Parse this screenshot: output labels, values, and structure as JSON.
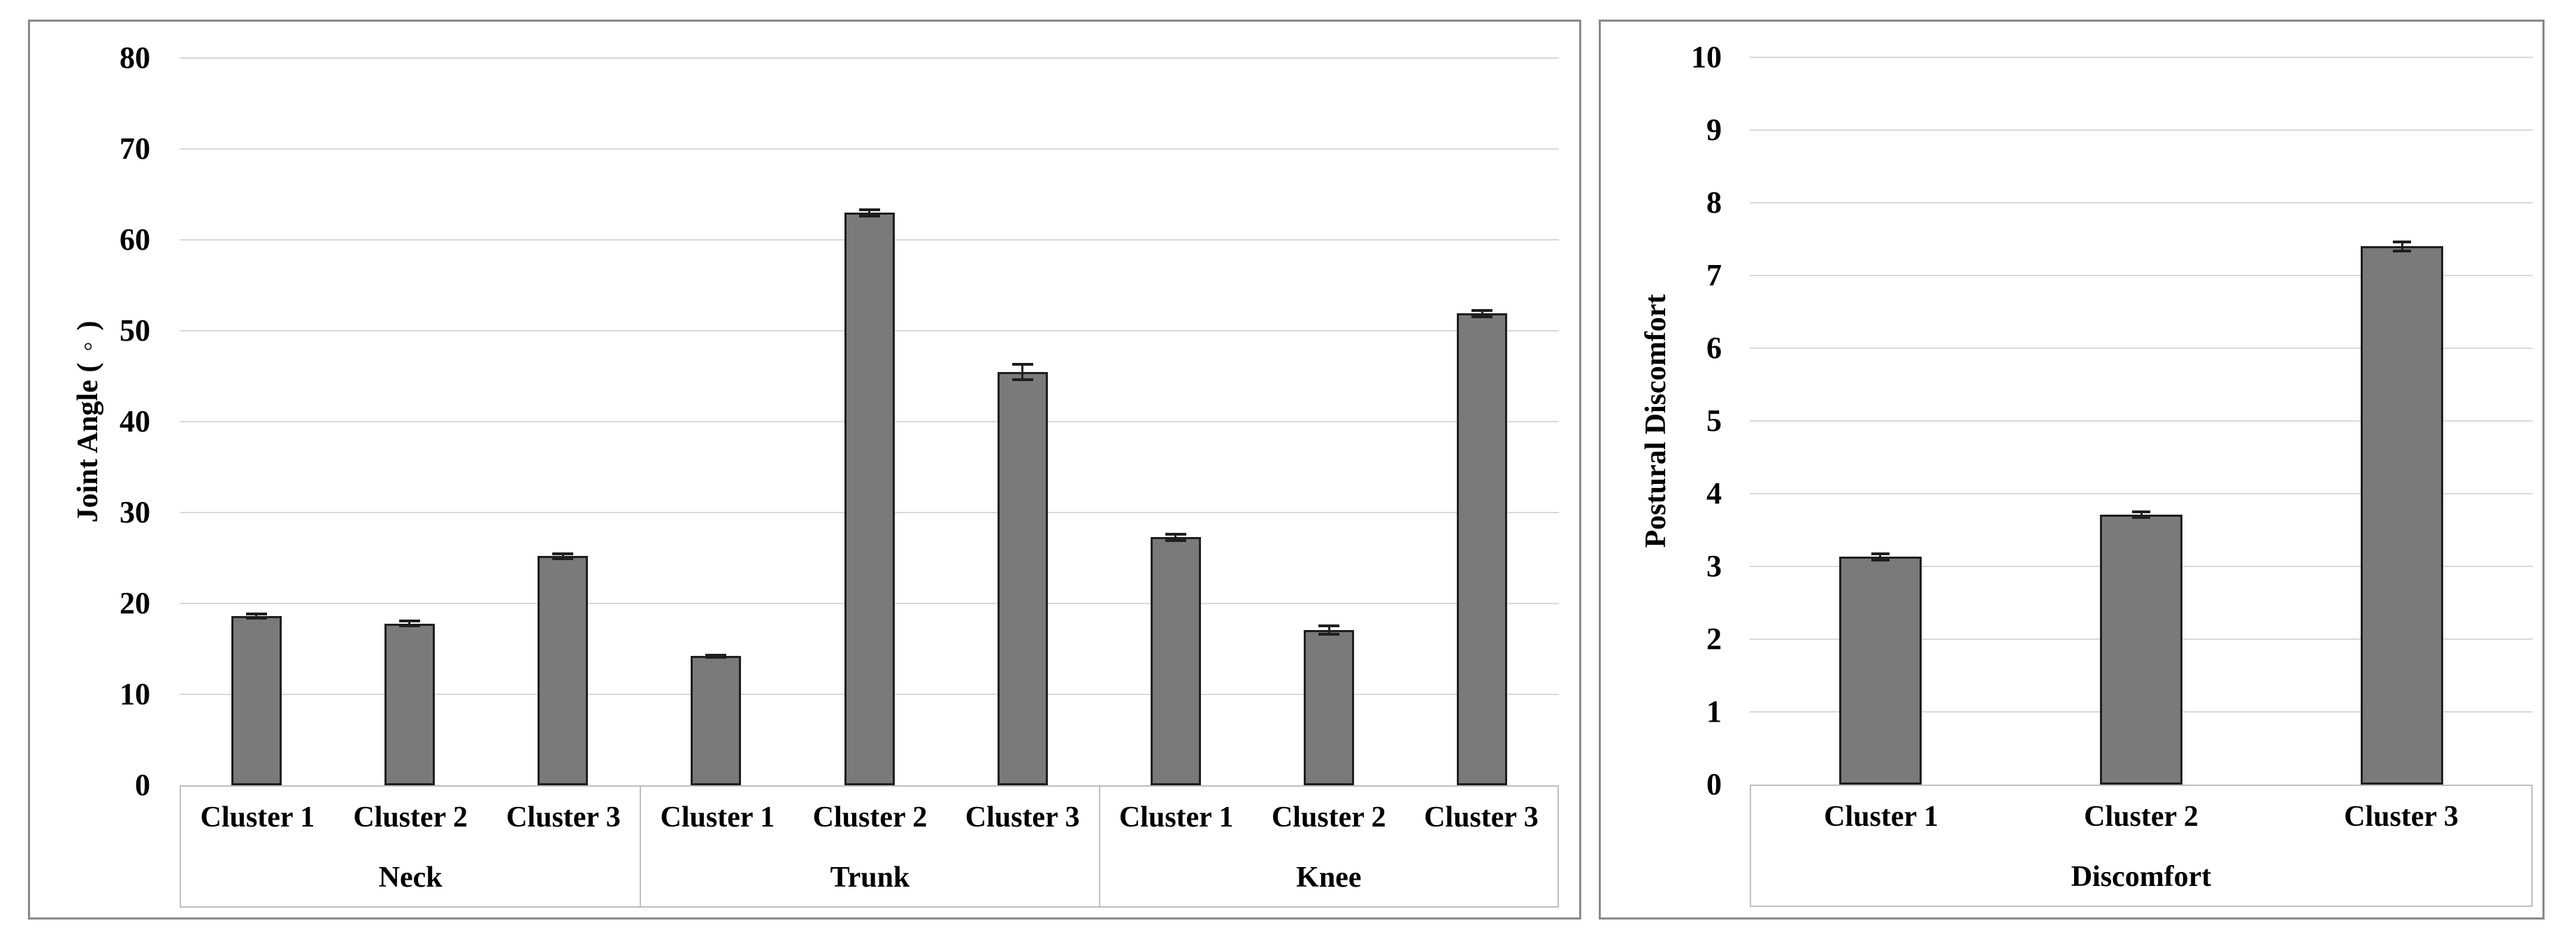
{
  "colors": {
    "background": "#ffffff",
    "bar_fill": "#7a7a7a",
    "bar_outline": "#1f1f1f",
    "gridline": "#d9d9d9",
    "table_border": "#bfbfbf",
    "panel_border": "#8a8a8a",
    "text": "#000000"
  },
  "chart_data": [
    {
      "type": "bar",
      "title": "",
      "y_axis_title": "Joint Angle (◦)",
      "xlabel": "",
      "ylabel": "Joint Angle (◦)",
      "ylim": [
        0,
        80
      ],
      "y_step": 10,
      "y_ticks": [
        0,
        10,
        20,
        30,
        40,
        50,
        60,
        70,
        80
      ],
      "grid": true,
      "legend": "none",
      "error_bars": true,
      "groups": [
        {
          "label": "Neck",
          "categories": [
            "Cluster 1",
            "Cluster 2",
            "Cluster 3"
          ],
          "values": [
            18.6,
            17.8,
            25.2
          ],
          "errors": [
            0.4,
            0.4,
            0.4
          ]
        },
        {
          "label": "Trunk",
          "categories": [
            "Cluster 1",
            "Cluster 2",
            "Cluster 3"
          ],
          "values": [
            14.2,
            63.0,
            45.5
          ],
          "errors": [
            0.3,
            0.5,
            1.0
          ]
        },
        {
          "label": "Knee",
          "categories": [
            "Cluster 1",
            "Cluster 2",
            "Cluster 3"
          ],
          "values": [
            27.3,
            17.1,
            51.9
          ],
          "errors": [
            0.5,
            0.6,
            0.5
          ]
        }
      ]
    },
    {
      "type": "bar",
      "title": "",
      "y_axis_title": "Postural Discomfort",
      "xlabel": "",
      "ylabel": "Postural Discomfort",
      "ylim": [
        0,
        10
      ],
      "y_step": 1,
      "y_ticks": [
        0,
        1,
        2,
        3,
        4,
        5,
        6,
        7,
        8,
        9,
        10
      ],
      "grid": true,
      "legend": "none",
      "error_bars": true,
      "groups": [
        {
          "label": "Discomfort",
          "categories": [
            "Cluster 1",
            "Cluster 2",
            "Cluster 3"
          ],
          "values": [
            3.13,
            3.71,
            7.4
          ],
          "errors": [
            0.06,
            0.06,
            0.08
          ]
        }
      ]
    }
  ]
}
